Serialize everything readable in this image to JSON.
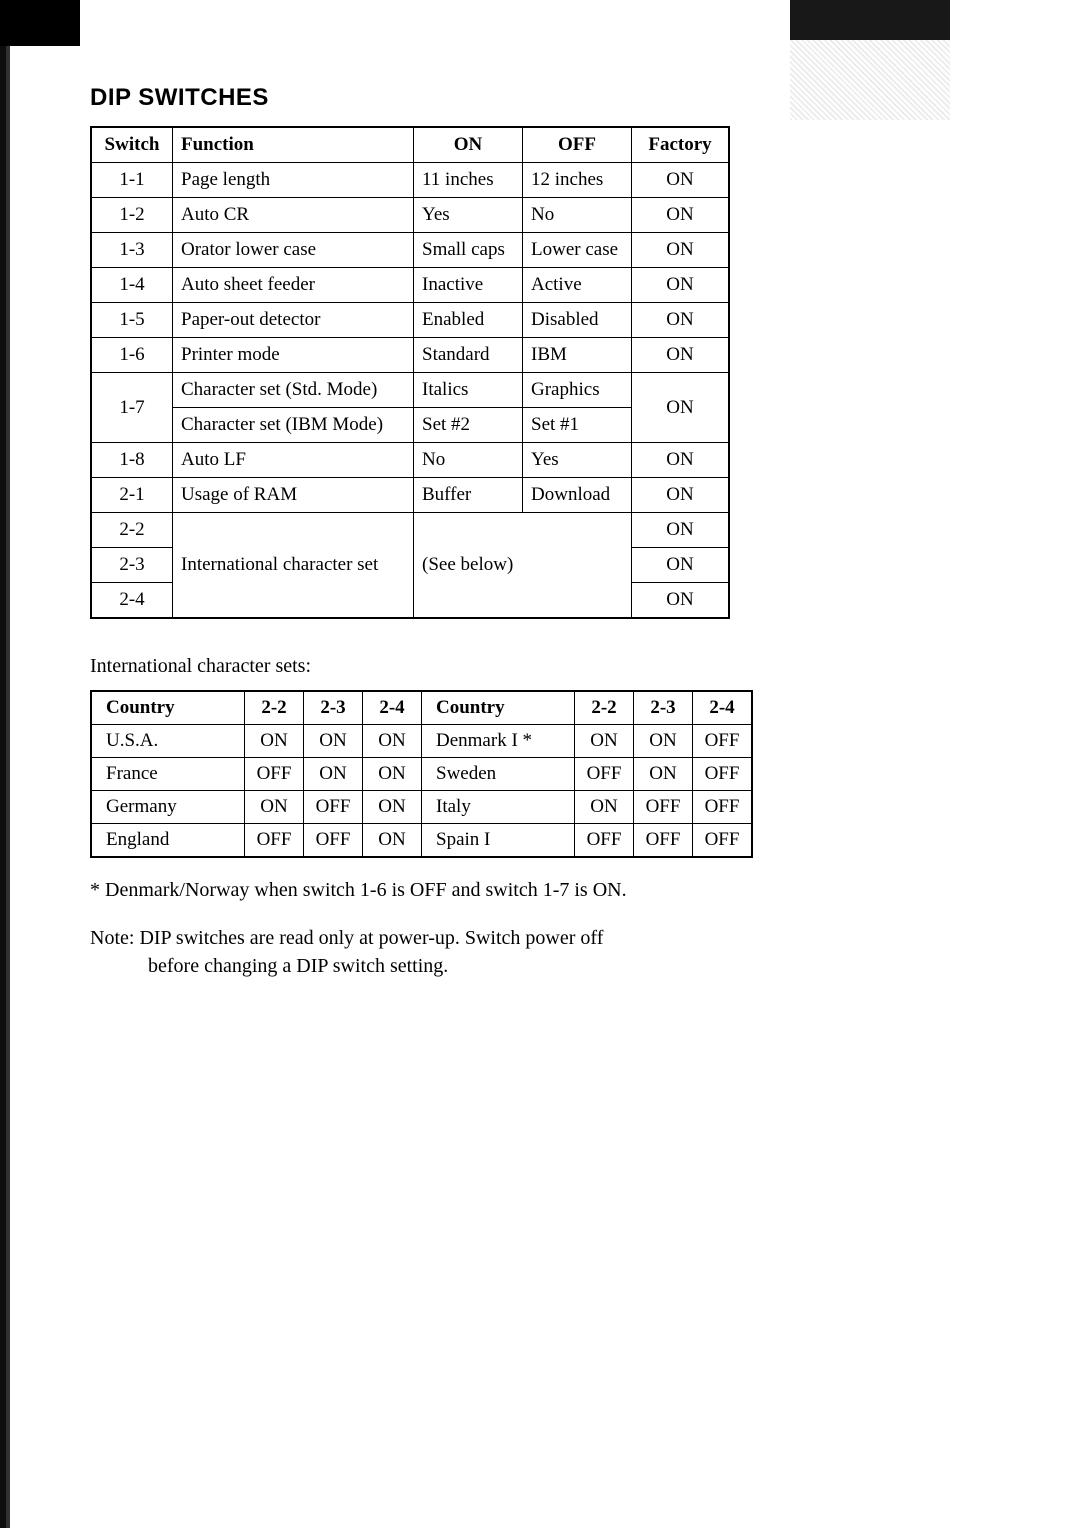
{
  "title": "DIP SWITCHES",
  "main_table": {
    "type": "table",
    "border_color": "#000000",
    "background_color": "#ffffff",
    "font_family": "Times New Roman",
    "header_fontsize": 19,
    "cell_fontsize": 19,
    "columns": [
      "Switch",
      "Function",
      "ON",
      "OFF",
      "Factory"
    ],
    "col_align": [
      "center",
      "left",
      "left",
      "left",
      "center"
    ],
    "rows": [
      {
        "switch": "1-1",
        "function": "Page length",
        "on": "11 inches",
        "off": "12 inches",
        "factory": "ON"
      },
      {
        "switch": "1-2",
        "function": "Auto CR",
        "on": "Yes",
        "off": "No",
        "factory": "ON"
      },
      {
        "switch": "1-3",
        "function": "Orator lower case",
        "on": "Small caps",
        "off": "Lower case",
        "factory": "ON"
      },
      {
        "switch": "1-4",
        "function": "Auto sheet feeder",
        "on": "Inactive",
        "off": "Active",
        "factory": "ON"
      },
      {
        "switch": "1-5",
        "function": "Paper-out detector",
        "on": "Enabled",
        "off": "Disabled",
        "factory": "ON"
      },
      {
        "switch": "1-6",
        "function": "Printer mode",
        "on": "Standard",
        "off": "IBM",
        "factory": "ON"
      }
    ],
    "row_1_7": {
      "switch": "1-7",
      "line1": {
        "function": "Character set (Std. Mode)",
        "on": "Italics",
        "off": "Graphics"
      },
      "line2": {
        "function": "Character set (IBM Mode)",
        "on": "Set #2",
        "off": "Set #1"
      },
      "factory": "ON"
    },
    "rows_after": [
      {
        "switch": "1-8",
        "function": "Auto LF",
        "on": "No",
        "off": "Yes",
        "factory": "ON"
      },
      {
        "switch": "2-1",
        "function": "Usage of RAM",
        "on": "Buffer",
        "off": "Download",
        "factory": "ON"
      }
    ],
    "intl_block": {
      "switches": [
        "2-2",
        "2-3",
        "2-4"
      ],
      "function": "International character set",
      "onoff": "(See below)",
      "factories": [
        "ON",
        "ON",
        "ON"
      ]
    }
  },
  "sub_heading": "International character sets:",
  "country_table": {
    "type": "table",
    "border_color": "#000000",
    "background_color": "#ffffff",
    "columns_left": [
      "Country",
      "2-2",
      "2-3",
      "2-4"
    ],
    "columns_right": [
      "Country",
      "2-2",
      "2-3",
      "2-4"
    ],
    "rows": [
      {
        "l_country": "U.S.A.",
        "l": [
          "ON",
          "ON",
          "ON"
        ],
        "r_country": "Denmark I *",
        "r": [
          "ON",
          "ON",
          "OFF"
        ]
      },
      {
        "l_country": "France",
        "l": [
          "OFF",
          "ON",
          "ON"
        ],
        "r_country": "Sweden",
        "r": [
          "OFF",
          "ON",
          "OFF"
        ]
      },
      {
        "l_country": "Germany",
        "l": [
          "ON",
          "OFF",
          "ON"
        ],
        "r_country": "Italy",
        "r": [
          "ON",
          "OFF",
          "OFF"
        ]
      },
      {
        "l_country": "England",
        "l": [
          "OFF",
          "OFF",
          "ON"
        ],
        "r_country": "Spain I",
        "r": [
          "OFF",
          "OFF",
          "OFF"
        ]
      }
    ]
  },
  "footnote": "* Denmark/Norway when switch 1-6 is OFF and switch 1-7 is ON.",
  "note_label": "Note:",
  "note_text_line1": "DIP switches are read only at power-up.  Switch power off",
  "note_text_line2": "before changing a DIP switch setting."
}
